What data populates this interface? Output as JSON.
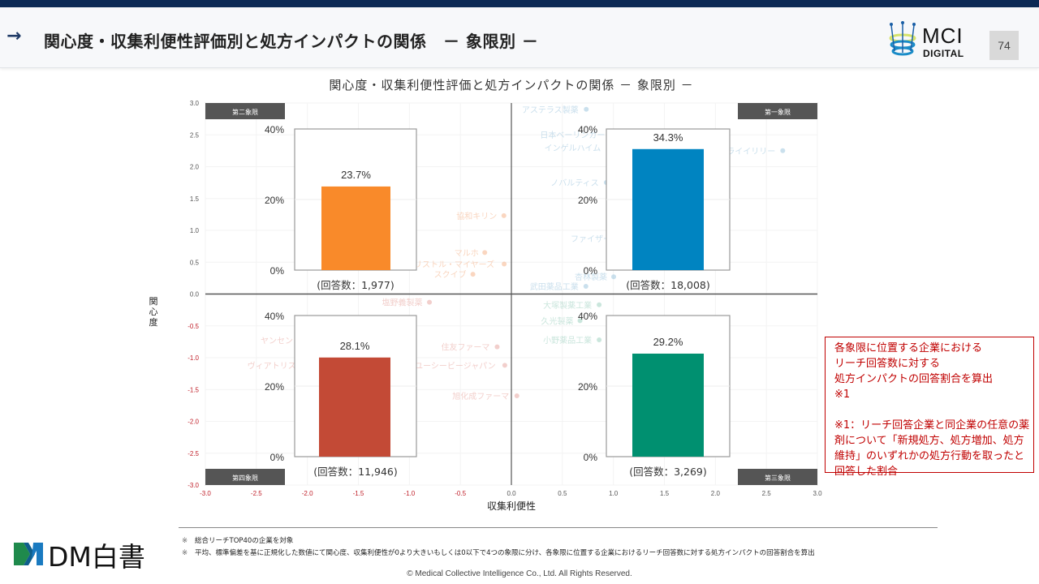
{
  "header": {
    "title": "関心度・収集利便性評価別と処方インパクトの関係　－ 象限別 －",
    "page_number": "74",
    "logo_mci": "MCI",
    "logo_digital": "DIGITAL"
  },
  "chart_data": {
    "type": "bar",
    "title": "関心度・収集利便性評価と処方インパクトの関係 － 象限別 －",
    "xlabel": "収集利便性",
    "ylabel": "関心度",
    "xlim": [
      -3.0,
      3.0
    ],
    "ylim": [
      -3.0,
      3.0
    ],
    "x_ticks": [
      "-3.0",
      "-2.5",
      "-2.0",
      "-1.5",
      "-1.0",
      "-0.5",
      "0.0",
      "0.5",
      "1.0",
      "1.5",
      "2.0",
      "2.5",
      "3.0"
    ],
    "y_ticks": [
      "3.0",
      "2.5",
      "2.0",
      "1.5",
      "1.0",
      "0.5",
      "0.0",
      "-0.5",
      "-1.0",
      "-1.5",
      "-2.0",
      "-2.5",
      "-3.0"
    ],
    "negative_tick_color": "#c0202a",
    "inset_axis_ticks": [
      "40%",
      "20%",
      "0%"
    ],
    "inset_ylim": [
      0,
      40
    ],
    "quadrants": [
      {
        "id": "q2",
        "label": "第二象限",
        "value": 23.7,
        "value_label": "23.7%",
        "respondents_label": "(回答数：1,977)",
        "color": "#f98a2a"
      },
      {
        "id": "q1",
        "label": "第一象限",
        "value": 34.3,
        "value_label": "34.3%",
        "respondents_label": "(回答数：18,008)",
        "color": "#0084c1"
      },
      {
        "id": "q4",
        "label": "第四象限",
        "value": 28.1,
        "value_label": "28.1%",
        "respondents_label": "(回答数：11,946)",
        "color": "#c34a36"
      },
      {
        "id": "q3",
        "label": "第三象限",
        "value": 29.2,
        "value_label": "29.2%",
        "respondents_label": "(回答数：3,269)",
        "color": "#009070"
      }
    ],
    "background_labels": [
      {
        "text": "アステラス製薬",
        "x": 0.38,
        "y": 2.85,
        "color": "#9fc6de"
      },
      {
        "text": "日本ベーリンガー",
        "x": 0.6,
        "y": 2.45,
        "color": "#9fc6de"
      },
      {
        "text": "インゲルハイム",
        "x": 0.6,
        "y": 2.25,
        "color": "#9fc6de"
      },
      {
        "text": "ライイリリー",
        "x": 2.35,
        "y": 2.2,
        "color": "#9fc6de"
      },
      {
        "text": "ノバルティス",
        "x": 0.62,
        "y": 1.7,
        "color": "#9fc6de"
      },
      {
        "text": "ファイザー",
        "x": 0.78,
        "y": 0.82,
        "color": "#9fc6de"
      },
      {
        "text": "杏林製薬",
        "x": 0.78,
        "y": 0.22,
        "color": "#9fc6de"
      },
      {
        "text": "武田薬品工業",
        "x": 0.42,
        "y": 0.07,
        "color": "#9fc6de"
      },
      {
        "text": "協和キリン",
        "x": -0.34,
        "y": 1.18,
        "color": "#f5b48c"
      },
      {
        "text": "マルホ",
        "x": -0.44,
        "y": 0.6,
        "color": "#f5b48c"
      },
      {
        "text": "ブリストル・マイヤーズ",
        "x": -0.6,
        "y": 0.42,
        "color": "#f5b48c"
      },
      {
        "text": "スクイブ",
        "x": -0.6,
        "y": 0.26,
        "color": "#f5b48c"
      },
      {
        "text": "ヤンセン",
        "x": -2.3,
        "y": -0.78,
        "color": "#e8a8a2"
      },
      {
        "text": "ヴィアトリス",
        "x": -2.35,
        "y": -1.17,
        "color": "#e8a8a2"
      },
      {
        "text": "塩野義製薬",
        "x": -1.07,
        "y": -0.18,
        "color": "#e8a8a2"
      },
      {
        "text": "住友ファーマ",
        "x": -0.45,
        "y": -0.88,
        "color": "#e8a8a2"
      },
      {
        "text": "ユーシービージャパン",
        "x": -0.55,
        "y": -1.17,
        "color": "#e8a8a2"
      },
      {
        "text": "旭化成ファーマ",
        "x": -0.3,
        "y": -1.65,
        "color": "#e8a8a2"
      },
      {
        "text": "大塚製薬工業",
        "x": 0.55,
        "y": -0.22,
        "color": "#9fd1c0"
      },
      {
        "text": "久光製薬",
        "x": 0.45,
        "y": -0.47,
        "color": "#9fd1c0"
      },
      {
        "text": "小野薬品工業",
        "x": 0.55,
        "y": -0.77,
        "color": "#9fd1c0"
      }
    ]
  },
  "note_box": {
    "text": "各象限に位置する企業における\nリーチ回答数に対する\n処方インパクトの回答割合を算出\n※1\n\n※1：リーチ回答企業と同企業の任意の薬剤について「新規処方、処方増加、処方維持」のいずれかの処方行動を取ったと回答した割合"
  },
  "footnotes": [
    {
      "mark": "※",
      "text": "総合リーチTOP40の企業を対象"
    },
    {
      "mark": "※",
      "text": "平均、標準偏差を基に正規化した数値にて関心度、収集利便性が0より大きいもしくは0以下で4つの象限に分け、各象限に位置する企業におけるリーチ回答数に対する処方インパクトの回答割合を算出"
    }
  ],
  "copyright": "© Medical Collective Intelligence Co., Ltd.  All Rights Reserved.",
  "logo_dm": "DM白書"
}
